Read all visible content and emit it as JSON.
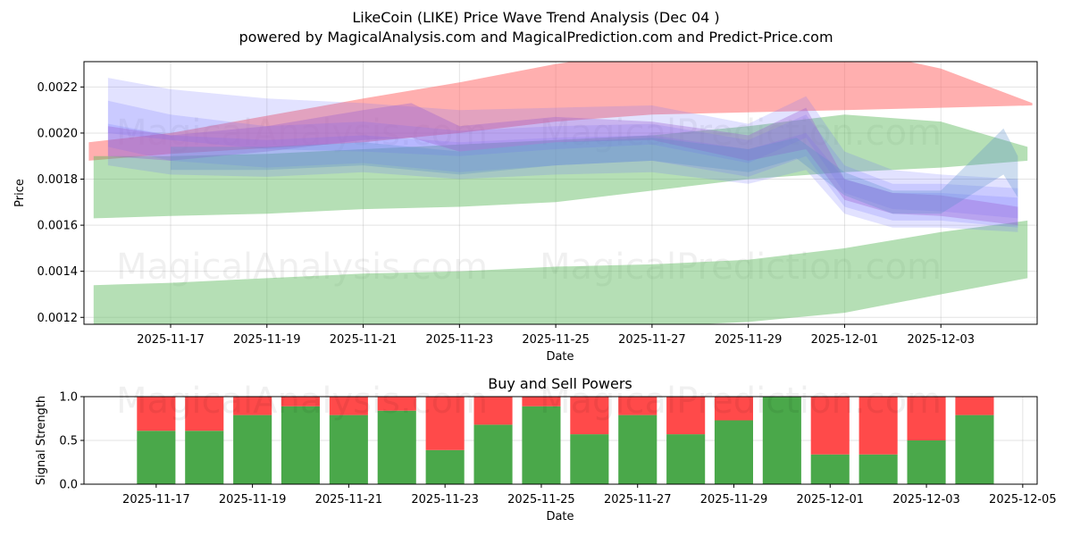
{
  "header": {
    "title_line1": "LikeCoin (LIKE) Price Wave Trend Analysis (Dec 04 )",
    "title_line2": "powered by MagicalAnalysis.com and MagicalPrediction.com and Predict-Price.com"
  },
  "watermarks": {
    "top_left": "MagicalAnalysis.com",
    "top_right": "MagicalPrediction.com",
    "mid_left": "MagicalAnalysis.com",
    "mid_right": "MagicalPrediction.com",
    "bottom_left": "MagicalAnalysis.com",
    "bottom_right": "MagicalPrediction.com"
  },
  "colors": {
    "red_band": "#ff6e6e",
    "green_band": "#5cb85c",
    "blue_band": "#6f6fff",
    "purple_band": "#9b5fd0",
    "buy": "#4aa84a",
    "sell": "#ff4a4a"
  },
  "chart_data": [
    {
      "type": "area",
      "title": "",
      "xlabel": "Date",
      "ylabel": "Price",
      "xlim": [
        -1.8,
        18.0
      ],
      "ylim": [
        0.00117,
        0.00231
      ],
      "x_ticks": [
        {
          "day": 0,
          "label": "2025-11-17"
        },
        {
          "day": 2,
          "label": "2025-11-19"
        },
        {
          "day": 4,
          "label": "2025-11-21"
        },
        {
          "day": 6,
          "label": "2025-11-23"
        },
        {
          "day": 8,
          "label": "2025-11-25"
        },
        {
          "day": 10,
          "label": "2025-11-27"
        },
        {
          "day": 12,
          "label": "2025-11-29"
        },
        {
          "day": 14,
          "label": "2025-12-01"
        },
        {
          "day": 16,
          "label": "2025-12-03"
        }
      ],
      "y_ticks": [
        {
          "value": 0.0012,
          "label": "0.0012"
        },
        {
          "value": 0.0014,
          "label": "0.0014"
        },
        {
          "value": 0.0016,
          "label": "0.0016"
        },
        {
          "value": 0.0018,
          "label": "0.0018"
        },
        {
          "value": 0.002,
          "label": "0.0020"
        },
        {
          "value": 0.0022,
          "label": "0.0022"
        }
      ],
      "grid": true,
      "bands": [
        {
          "name": "red-trend-band",
          "color": "red",
          "opacity": 0.55,
          "x": [
            -1.7,
            0,
            4,
            6,
            8,
            10,
            12,
            14,
            16,
            17.9
          ],
          "lower": [
            0.00188,
            0.00191,
            0.00196,
            0.002,
            0.00205,
            0.00208,
            0.00209,
            0.0021,
            0.00211,
            0.00212
          ],
          "upper": [
            0.00196,
            0.002,
            0.00215,
            0.00222,
            0.0023,
            0.00236,
            0.00238,
            0.00237,
            0.00228,
            0.00213
          ]
        },
        {
          "name": "green-upper-band",
          "color": "green",
          "opacity": 0.45,
          "x": [
            -1.6,
            0,
            2,
            4,
            6,
            8,
            10,
            12,
            14,
            16,
            17.8
          ],
          "lower": [
            0.00163,
            0.00164,
            0.00165,
            0.00167,
            0.00168,
            0.0017,
            0.00175,
            0.0018,
            0.00183,
            0.00185,
            0.00188
          ],
          "upper": [
            0.0019,
            0.0019,
            0.00191,
            0.00193,
            0.00195,
            0.00197,
            0.00199,
            0.00203,
            0.00208,
            0.00205,
            0.00194
          ]
        },
        {
          "name": "green-lower-band",
          "color": "green",
          "opacity": 0.45,
          "x": [
            -1.6,
            0,
            2,
            4,
            6,
            8,
            10,
            12,
            14,
            16,
            17.8
          ],
          "lower": [
            0.00112,
            0.00113,
            0.00113,
            0.00114,
            0.00114,
            0.00115,
            0.00116,
            0.00118,
            0.00122,
            0.0013,
            0.00137
          ],
          "upper": [
            0.00134,
            0.00135,
            0.00137,
            0.00139,
            0.0014,
            0.00142,
            0.00143,
            0.00145,
            0.0015,
            0.00157,
            0.00162
          ]
        },
        {
          "name": "blue-wave-band-1",
          "color": "blue",
          "opacity": 0.2,
          "x": [
            -1.3,
            0,
            2,
            4,
            6,
            8,
            10,
            12,
            13.2,
            14,
            15,
            16,
            17.6
          ],
          "lower": [
            0.002,
            0.00197,
            0.00193,
            0.00192,
            0.0019,
            0.00193,
            0.00195,
            0.00187,
            0.00198,
            0.00174,
            0.00167,
            0.00166,
            0.00163
          ],
          "upper": [
            0.00224,
            0.00219,
            0.00215,
            0.00213,
            0.0021,
            0.00211,
            0.00212,
            0.00204,
            0.00216,
            0.00192,
            0.00184,
            0.00182,
            0.0018
          ]
        },
        {
          "name": "blue-wave-band-2",
          "color": "blue",
          "opacity": 0.2,
          "x": [
            -1.3,
            0,
            2,
            4,
            6,
            8,
            10,
            12,
            13.2,
            14,
            15,
            16,
            17.6
          ],
          "lower": [
            0.00194,
            0.00188,
            0.00185,
            0.00187,
            0.00183,
            0.00186,
            0.00188,
            0.00181,
            0.0019,
            0.00168,
            0.00162,
            0.00162,
            0.00159
          ],
          "upper": [
            0.00214,
            0.00208,
            0.00203,
            0.00205,
            0.00201,
            0.00203,
            0.00204,
            0.00197,
            0.00208,
            0.00186,
            0.00178,
            0.00178,
            0.00176
          ]
        },
        {
          "name": "blue-wave-band-3",
          "color": "blue",
          "opacity": 0.2,
          "x": [
            -1.3,
            0,
            2,
            4,
            6,
            8,
            10,
            12,
            13.2,
            14,
            15,
            16,
            17.6
          ],
          "lower": [
            0.00186,
            0.00182,
            0.00181,
            0.00183,
            0.0018,
            0.00182,
            0.00183,
            0.00178,
            0.00184,
            0.00165,
            0.00159,
            0.00159,
            0.00157
          ],
          "upper": [
            0.00204,
            0.00199,
            0.00197,
            0.00199,
            0.00196,
            0.00198,
            0.00199,
            0.00193,
            0.002,
            0.0018,
            0.00174,
            0.00174,
            0.00172
          ]
        },
        {
          "name": "purple-wave-band",
          "color": "purple",
          "opacity": 0.35,
          "x": [
            -1.3,
            0,
            2,
            4,
            5,
            6,
            8,
            10,
            12,
            13.2,
            14,
            15,
            16,
            17.6
          ],
          "lower": [
            0.0019,
            0.00188,
            0.00192,
            0.00197,
            0.00198,
            0.00192,
            0.00196,
            0.00197,
            0.00188,
            0.00193,
            0.00171,
            0.00165,
            0.00164,
            0.0016
          ],
          "upper": [
            0.00203,
            0.00199,
            0.00203,
            0.0021,
            0.00213,
            0.00203,
            0.00207,
            0.00205,
            0.00199,
            0.00211,
            0.0018,
            0.00174,
            0.00173,
            0.00168
          ]
        },
        {
          "name": "steel-wave-band",
          "color": "steel",
          "opacity": 0.3,
          "x": [
            0,
            2,
            4,
            6,
            8,
            10,
            12,
            13,
            14,
            15,
            16,
            17.3,
            17.6
          ],
          "lower": [
            0.00184,
            0.00184,
            0.00186,
            0.00182,
            0.00186,
            0.00188,
            0.00183,
            0.00189,
            0.00173,
            0.00165,
            0.00165,
            0.00182,
            0.00172
          ],
          "upper": [
            0.00194,
            0.00194,
            0.00196,
            0.00192,
            0.00196,
            0.00198,
            0.00193,
            0.00198,
            0.00183,
            0.00175,
            0.00175,
            0.00202,
            0.0019
          ]
        }
      ]
    },
    {
      "type": "bar",
      "title": "Buy and Sell Powers",
      "xlabel": "Date",
      "ylabel": "Signal Strength",
      "ylim": [
        0.0,
        1.0
      ],
      "xlim": [
        -1.5,
        18.3
      ],
      "y_ticks": [
        {
          "value": 0.0,
          "label": "0.0"
        },
        {
          "value": 0.5,
          "label": "0.5"
        },
        {
          "value": 1.0,
          "label": "1.0"
        }
      ],
      "x_ticks": [
        {
          "day": 0,
          "label": "2025-11-17"
        },
        {
          "day": 2,
          "label": "2025-11-19"
        },
        {
          "day": 4,
          "label": "2025-11-21"
        },
        {
          "day": 6,
          "label": "2025-11-23"
        },
        {
          "day": 8,
          "label": "2025-11-25"
        },
        {
          "day": 10,
          "label": "2025-11-27"
        },
        {
          "day": 12,
          "label": "2025-11-29"
        },
        {
          "day": 14,
          "label": "2025-12-01"
        },
        {
          "day": 16,
          "label": "2025-12-03"
        },
        {
          "day": 18,
          "label": "2025-12-05"
        }
      ],
      "categories": [
        "2025-11-17",
        "2025-11-18",
        "2025-11-19",
        "2025-11-20",
        "2025-11-21",
        "2025-11-22",
        "2025-11-23",
        "2025-11-24",
        "2025-11-25",
        "2025-11-26",
        "2025-11-27",
        "2025-11-28",
        "2025-11-29",
        "2025-11-30",
        "2025-12-01",
        "2025-12-02",
        "2025-12-03",
        "2025-12-04"
      ],
      "series": [
        {
          "name": "Buy",
          "values": [
            0.61,
            0.61,
            0.79,
            0.89,
            0.79,
            0.84,
            0.39,
            0.68,
            0.89,
            0.57,
            0.79,
            0.57,
            0.73,
            1.0,
            0.34,
            0.34,
            0.5,
            0.79
          ]
        },
        {
          "name": "Sell",
          "values": [
            0.39,
            0.39,
            0.21,
            0.11,
            0.21,
            0.16,
            0.61,
            0.32,
            0.11,
            0.43,
            0.21,
            0.43,
            0.27,
            0.0,
            0.66,
            0.66,
            0.5,
            0.21
          ]
        }
      ]
    }
  ]
}
